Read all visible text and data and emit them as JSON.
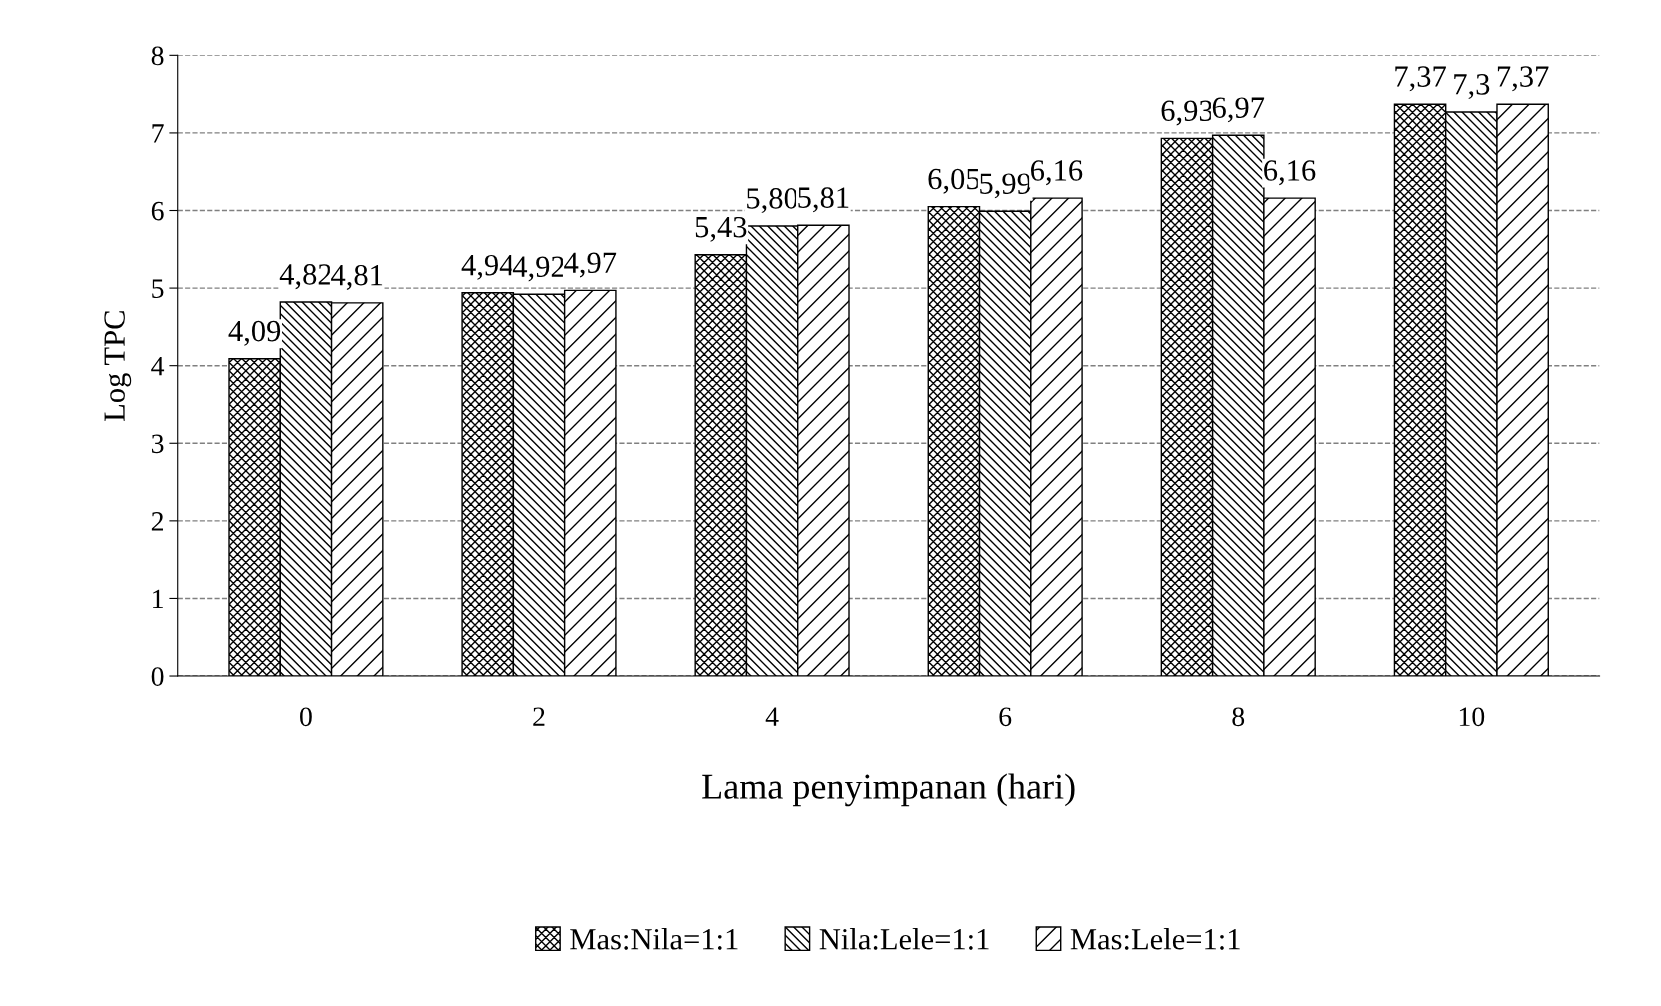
{
  "chart_data": {
    "type": "bar",
    "xlabel": "Lama penyimpanan (hari)",
    "ylabel": "Log TPC",
    "categories": [
      "0",
      "2",
      "4",
      "6",
      "8",
      "10"
    ],
    "series": [
      {
        "name": "Mas:Nila=1:1",
        "color": "#000000",
        "values": [
          4.09,
          4.94,
          5.43,
          6.05,
          6.93,
          7.37
        ],
        "value_labels": [
          "4,09",
          "4,94",
          "5,43",
          "6,05",
          "6,93",
          "7,37"
        ]
      },
      {
        "name": "Nila:Lele=1:1",
        "color": "#000000",
        "values": [
          4.82,
          4.92,
          5.8,
          5.99,
          6.97,
          7.27
        ],
        "value_labels": [
          "4,82",
          "4,92",
          "5,80",
          "5,99",
          "6,97",
          "7,3"
        ]
      },
      {
        "name": "Mas:Lele=1:1",
        "color": "#000000",
        "values": [
          4.81,
          4.97,
          5.81,
          6.16,
          6.16,
          7.37
        ],
        "value_labels": [
          "4,81",
          "4,97",
          "5,81",
          "6,16",
          "6,16",
          "7,37"
        ]
      }
    ],
    "ylim": [
      0,
      8
    ],
    "yticks": [
      0,
      1,
      2,
      3,
      4,
      5,
      6,
      7,
      8
    ],
    "grid": "y",
    "legend": "bottom"
  }
}
